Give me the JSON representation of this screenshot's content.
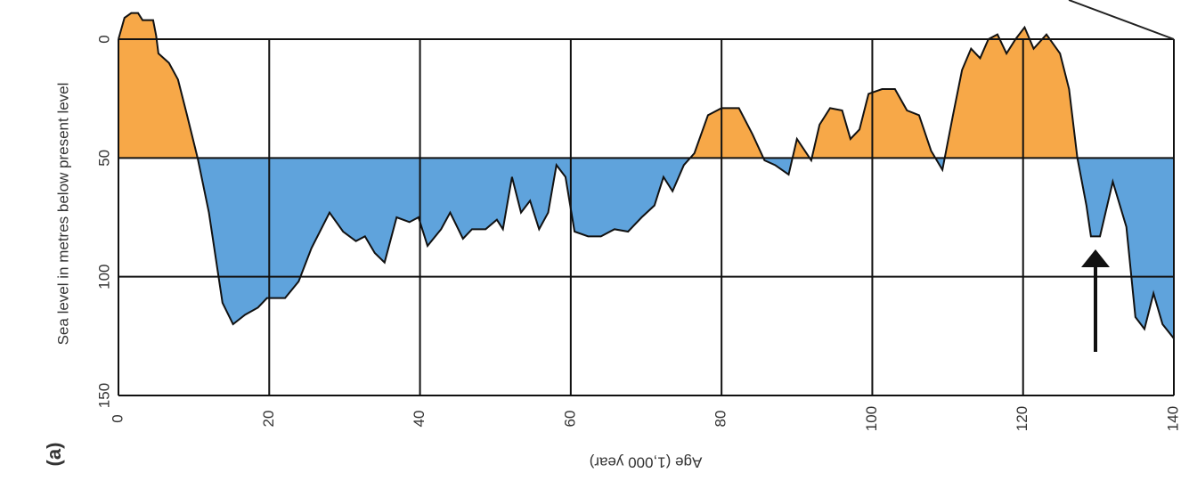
{
  "chart_data": {
    "type": "area-baseline",
    "label": "(a)",
    "xlabel": "Age (1,000 year)",
    "ylabel": "Sea level in metres below present level",
    "x": [
      0,
      0.8,
      1.7,
      2.6,
      3.2,
      4.6,
      5,
      5.3,
      6.7,
      7.9,
      9.1,
      10.5,
      12,
      13.8,
      15.2,
      16.8,
      18.5,
      19.7,
      22.1,
      23.9,
      25.6,
      28,
      29.8,
      31.5,
      32.7,
      34,
      35.3,
      36.9,
      38.6,
      39.8,
      41,
      42.8,
      44,
      45.7,
      46.9,
      48.7,
      50.2,
      51,
      52.2,
      53.4,
      54.6,
      55.8,
      57,
      58.1,
      59.3,
      60.5,
      62.3,
      64,
      65.8,
      67.6,
      69.4,
      71.1,
      72.3,
      73.5,
      75,
      76.4,
      78.2,
      80,
      82.3,
      84.1,
      85.7,
      87.1,
      88.9,
      90,
      91.9,
      93,
      94.4,
      96,
      97.1,
      98.3,
      99.5,
      101.3,
      103,
      104.6,
      106.2,
      107.8,
      109.3,
      110.7,
      111.9,
      113.1,
      114.3,
      115.4,
      116.6,
      117.8,
      119,
      120.2,
      121.4,
      123.1,
      124.9,
      126.1,
      127.2,
      128.4,
      129,
      130.2,
      131.9,
      133.7,
      134.9,
      136.1,
      137.3,
      138.5,
      140
    ],
    "values": [
      0,
      -9,
      -11,
      -11,
      -8,
      -8,
      -1.5,
      6,
      10,
      17,
      32,
      50,
      73,
      111,
      120,
      116,
      113,
      109,
      109,
      102,
      88,
      73,
      81,
      85,
      83,
      90,
      94,
      75,
      77,
      75,
      87,
      80,
      73,
      84,
      80,
      80,
      76,
      80,
      58,
      73,
      68,
      80,
      73,
      53,
      58,
      81,
      83,
      83,
      80,
      81,
      75,
      70,
      58,
      64,
      53,
      48,
      32,
      29,
      29,
      40,
      51,
      53,
      57,
      42,
      51,
      36,
      29,
      30,
      42,
      38,
      23,
      21,
      21,
      30,
      32,
      47,
      55,
      32,
      13,
      4,
      8,
      0,
      -2,
      6,
      0,
      -5,
      4,
      -2,
      6,
      21,
      50,
      70,
      83,
      83,
      60,
      79,
      117,
      122,
      107,
      120,
      126
    ],
    "line_color": "#111111",
    "color_above": "#f7a848",
    "color_below": "#5fa3dc",
    "fill_baseline": 50,
    "xlim": [
      0,
      140
    ],
    "ylim": [
      0,
      150
    ],
    "y_inverted": true,
    "xticks": [
      0,
      20,
      40,
      60,
      80,
      100,
      120,
      140
    ],
    "yticks": [
      0,
      50,
      100,
      150
    ],
    "grid": true
  }
}
